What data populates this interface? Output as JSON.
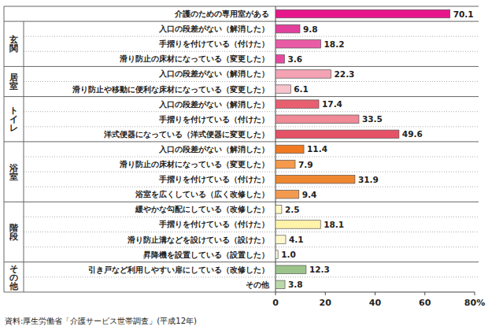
{
  "chart_data": {
    "type": "bar",
    "orientation": "horizontal",
    "data_labels": true,
    "grid": false,
    "categories": [
      "介護のための専用室がある",
      "入口の段差がない（解消した）",
      "手摺りを付けている（付けた）",
      "滑り防止の床材になっている（変更した）",
      "入口の段差がない（解消した）",
      "滑り防止や移動に便利な床材になっている（変更した）",
      "入口の段差がない（解消した）",
      "手摺りを付けている（付けた）",
      "洋式便器になっている（洋式便器に変更した）",
      "入口の段差がない（解消した）",
      "滑り防止の床材になっている（変更した）",
      "手摺りを付けている（付けた）",
      "浴室を広くしている（広く改修した）",
      "緩やかな勾配にしている（改修した）",
      "手摺りを付けている（付けた）",
      "滑り防止溝などを設けている（設けた）",
      "昇降機を設置している（設置した）",
      "引き戸など利用しやすい扉にしている（改修した）",
      "その他"
    ],
    "values": [
      70.1,
      9.8,
      18.2,
      3.6,
      22.3,
      6.1,
      17.4,
      33.5,
      49.6,
      11.4,
      7.9,
      31.9,
      9.4,
      2.5,
      18.1,
      4.1,
      1.0,
      12.3,
      3.8
    ],
    "colors": [
      "#e8168b",
      "#e2409c",
      "#ea5ba6",
      "#e5499f",
      "#f4a3b4",
      "#f7c3cd",
      "#e85f70",
      "#ef8a96",
      "#e55266",
      "#f07a22",
      "#f59a4c",
      "#ef8630",
      "#f39a50",
      "#fff7c4",
      "#fff3a8",
      "#fff8cc",
      "#fffbe0",
      "#9cc48a",
      "#b9d9a9"
    ],
    "groups": [
      {
        "label": "玄関",
        "from": 1,
        "to": 3
      },
      {
        "label": "居室",
        "from": 4,
        "to": 5
      },
      {
        "label": "トイレ",
        "from": 6,
        "to": 8
      },
      {
        "label": "浴室",
        "from": 9,
        "to": 12
      },
      {
        "label": "階段",
        "from": 13,
        "to": 16
      },
      {
        "label": "その他",
        "from": 17,
        "to": 18
      }
    ],
    "xlim": [
      0,
      80
    ],
    "xticks": [
      0,
      20,
      40,
      60,
      {
        "value": 80,
        "label": "80%"
      }
    ],
    "source": "資料:厚生労働省「介護サービス世帯調査」(平成12年)"
  }
}
